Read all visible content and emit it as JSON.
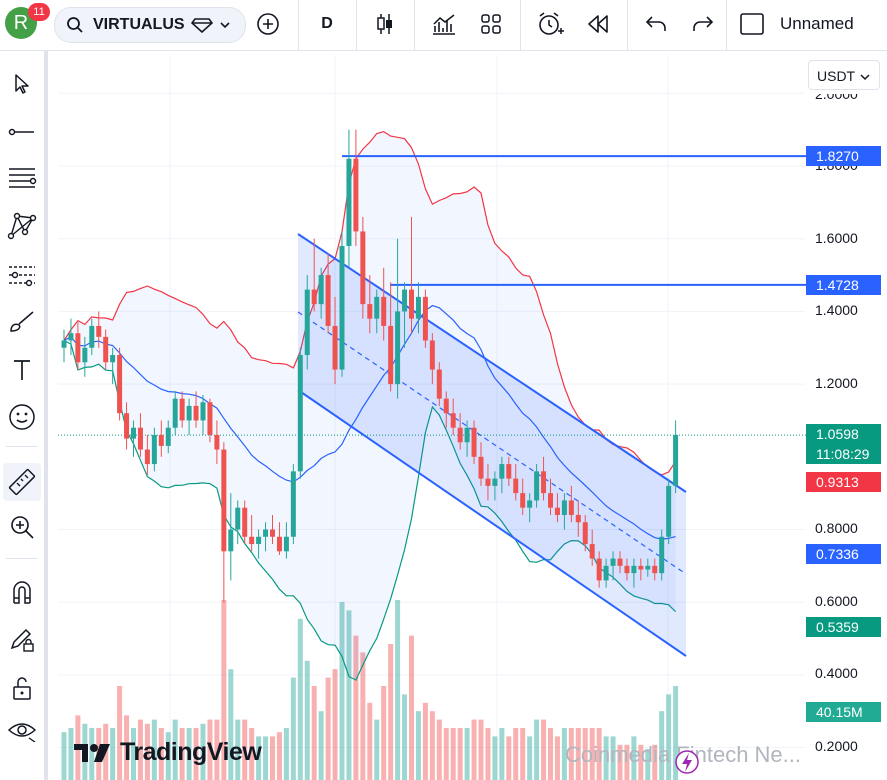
{
  "topbar": {
    "avatar_letter": "R",
    "notification_count": "11",
    "symbol": "VIRTUALUS",
    "interval": "D",
    "layout_name": "Unnamed"
  },
  "chart": {
    "currency": "USDT",
    "price_ticks": [
      "2.0000",
      "1.8000",
      "1.6000",
      "1.4000",
      "1.2000",
      "0.8000",
      "0.6000",
      "0.4000",
      "0.2000"
    ],
    "labels": {
      "level_high": "1.8270",
      "level_mid": "1.4728",
      "last_price": "1.0598",
      "countdown": "11:08:29",
      "bb_upper": "0.9313",
      "bb_basis": "0.7336",
      "bb_lower": "0.5359",
      "volume": "40.15M"
    },
    "colors": {
      "up": "#26a69a",
      "down": "#ef5350",
      "level_line": "#2962ff",
      "bb_upper": "#f23645",
      "bb_basis": "#2962ff",
      "bb_lower": "#089981"
    }
  },
  "branding": {
    "logo_text": "TradingView",
    "watermark": "Coinmedia Fintech Ne..."
  },
  "chart_data": {
    "type": "candlestick",
    "ylim": [
      0.15,
      2.05
    ],
    "yticks": [
      0.2,
      0.4,
      0.6,
      0.8,
      1.2,
      1.4,
      1.6,
      1.8,
      2.0
    ],
    "horizontal_levels": [
      1.827,
      1.4728
    ],
    "last_price": 1.0598,
    "candles": [
      [
        1.3,
        1.35,
        1.26,
        1.32
      ],
      [
        1.32,
        1.38,
        1.28,
        1.34
      ],
      [
        1.34,
        1.37,
        1.24,
        1.26
      ],
      [
        1.26,
        1.33,
        1.22,
        1.3
      ],
      [
        1.3,
        1.38,
        1.28,
        1.36
      ],
      [
        1.36,
        1.4,
        1.3,
        1.33
      ],
      [
        1.33,
        1.35,
        1.24,
        1.26
      ],
      [
        1.26,
        1.3,
        1.2,
        1.28
      ],
      [
        1.28,
        1.3,
        1.1,
        1.12
      ],
      [
        1.12,
        1.15,
        1.02,
        1.05
      ],
      [
        1.05,
        1.1,
        1.0,
        1.08
      ],
      [
        1.08,
        1.12,
        1.0,
        1.02
      ],
      [
        1.02,
        1.06,
        0.95,
        0.98
      ],
      [
        0.98,
        1.08,
        0.96,
        1.06
      ],
      [
        1.06,
        1.1,
        1.0,
        1.03
      ],
      [
        1.03,
        1.1,
        1.01,
        1.08
      ],
      [
        1.08,
        1.18,
        1.06,
        1.16
      ],
      [
        1.16,
        1.18,
        1.08,
        1.1
      ],
      [
        1.1,
        1.16,
        1.06,
        1.14
      ],
      [
        1.14,
        1.18,
        1.08,
        1.1
      ],
      [
        1.1,
        1.17,
        1.06,
        1.15
      ],
      [
        1.15,
        1.16,
        1.04,
        1.06
      ],
      [
        1.06,
        1.1,
        0.98,
        1.02
      ],
      [
        1.02,
        1.04,
        0.6,
        0.74
      ],
      [
        0.74,
        0.9,
        0.66,
        0.8
      ],
      [
        0.8,
        0.88,
        0.76,
        0.86
      ],
      [
        0.86,
        0.88,
        0.76,
        0.78
      ],
      [
        0.78,
        0.84,
        0.74,
        0.76
      ],
      [
        0.76,
        0.8,
        0.72,
        0.78
      ],
      [
        0.78,
        0.82,
        0.74,
        0.8
      ],
      [
        0.8,
        0.84,
        0.76,
        0.78
      ],
      [
        0.78,
        0.82,
        0.73,
        0.74
      ],
      [
        0.74,
        0.82,
        0.72,
        0.78
      ],
      [
        0.78,
        0.98,
        0.76,
        0.96
      ],
      [
        0.96,
        1.3,
        0.94,
        1.28
      ],
      [
        1.28,
        1.5,
        1.24,
        1.46
      ],
      [
        1.46,
        1.6,
        1.4,
        1.42
      ],
      [
        1.42,
        1.52,
        1.38,
        1.5
      ],
      [
        1.5,
        1.56,
        1.34,
        1.36
      ],
      [
        1.36,
        1.44,
        1.2,
        1.24
      ],
      [
        1.24,
        1.62,
        1.22,
        1.58
      ],
      [
        1.58,
        1.9,
        1.52,
        1.82
      ],
      [
        1.82,
        1.9,
        1.58,
        1.62
      ],
      [
        1.62,
        1.66,
        1.38,
        1.42
      ],
      [
        1.42,
        1.5,
        1.34,
        1.38
      ],
      [
        1.38,
        1.46,
        1.34,
        1.44
      ],
      [
        1.44,
        1.52,
        1.32,
        1.36
      ],
      [
        1.36,
        1.48,
        1.18,
        1.2
      ],
      [
        1.2,
        1.6,
        1.16,
        1.4
      ],
      [
        1.4,
        1.48,
        1.3,
        1.46
      ],
      [
        1.46,
        1.66,
        1.34,
        1.38
      ],
      [
        1.38,
        1.48,
        1.34,
        1.44
      ],
      [
        1.44,
        1.46,
        1.3,
        1.32
      ],
      [
        1.32,
        1.34,
        1.2,
        1.24
      ],
      [
        1.24,
        1.26,
        1.14,
        1.16
      ],
      [
        1.16,
        1.18,
        1.08,
        1.12
      ],
      [
        1.12,
        1.16,
        1.06,
        1.08
      ],
      [
        1.08,
        1.12,
        1.02,
        1.04
      ],
      [
        1.04,
        1.1,
        1.0,
        1.08
      ],
      [
        1.08,
        1.1,
        0.98,
        1.0
      ],
      [
        1.0,
        1.04,
        0.92,
        0.94
      ],
      [
        0.94,
        0.98,
        0.88,
        0.92
      ],
      [
        0.92,
        0.96,
        0.88,
        0.94
      ],
      [
        0.94,
        1.0,
        0.9,
        0.98
      ],
      [
        0.98,
        1.0,
        0.92,
        0.94
      ],
      [
        0.94,
        0.98,
        0.88,
        0.9
      ],
      [
        0.9,
        0.94,
        0.84,
        0.86
      ],
      [
        0.86,
        0.9,
        0.82,
        0.88
      ],
      [
        0.88,
        0.98,
        0.86,
        0.96
      ],
      [
        0.96,
        1.0,
        0.88,
        0.9
      ],
      [
        0.9,
        0.94,
        0.84,
        0.86
      ],
      [
        0.86,
        0.9,
        0.82,
        0.84
      ],
      [
        0.84,
        0.9,
        0.8,
        0.88
      ],
      [
        0.88,
        0.92,
        0.82,
        0.84
      ],
      [
        0.84,
        0.88,
        0.78,
        0.82
      ],
      [
        0.82,
        0.84,
        0.74,
        0.76
      ],
      [
        0.76,
        0.8,
        0.7,
        0.72
      ],
      [
        0.72,
        0.74,
        0.64,
        0.66
      ],
      [
        0.66,
        0.72,
        0.64,
        0.7
      ],
      [
        0.7,
        0.74,
        0.66,
        0.72
      ],
      [
        0.72,
        0.74,
        0.68,
        0.7
      ],
      [
        0.7,
        0.72,
        0.66,
        0.68
      ],
      [
        0.68,
        0.72,
        0.64,
        0.7
      ],
      [
        0.7,
        0.72,
        0.66,
        0.69
      ],
      [
        0.69,
        0.72,
        0.67,
        0.7
      ],
      [
        0.7,
        0.72,
        0.66,
        0.68
      ],
      [
        0.68,
        0.8,
        0.66,
        0.78
      ],
      [
        0.78,
        0.94,
        0.76,
        0.92
      ],
      [
        0.92,
        1.1,
        0.9,
        1.06
      ]
    ]
  }
}
